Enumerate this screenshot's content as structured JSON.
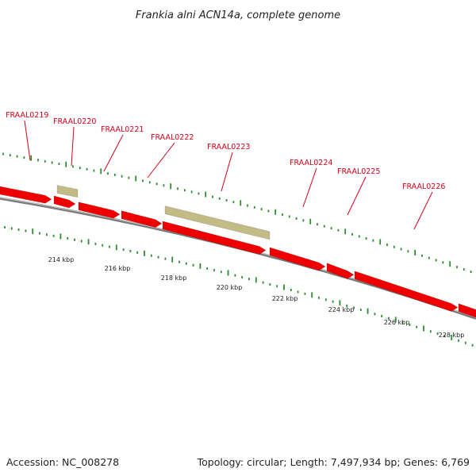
{
  "title": "Frankia alni ACN14a, complete genome",
  "footer": {
    "accession": "Accession: NC_008278",
    "topology": "Topology: circular; Length: 7,497,934 bp; Genes: 6,769"
  },
  "colors": {
    "cds": "#ee0000",
    "rna_feature": "#c2bb85",
    "backbone": "#7a7a7a",
    "ticks": "#2e8b2e",
    "gene_label": "#d0021b"
  },
  "genes": [
    {
      "name": "FRAAL0219"
    },
    {
      "name": "FRAAL0220"
    },
    {
      "name": "FRAAL0221"
    },
    {
      "name": "FRAAL0222"
    },
    {
      "name": "FRAAL0223"
    },
    {
      "name": "FRAAL0224"
    },
    {
      "name": "FRAAL0225"
    },
    {
      "name": "FRAAL0226"
    }
  ],
  "kbp_ticks": [
    "214 kbp",
    "216 kbp",
    "218 kbp",
    "220 kbp",
    "222 kbp",
    "224 kbp",
    "226 kbp",
    "228 kbp"
  ]
}
